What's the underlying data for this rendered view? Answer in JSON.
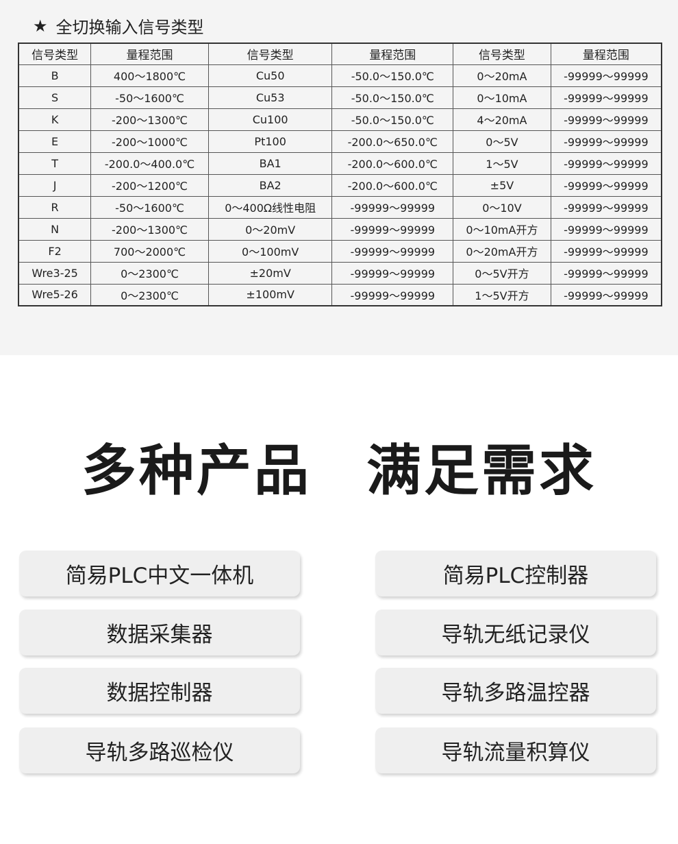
{
  "section_title": {
    "icon": "star-icon",
    "star": "★",
    "text": "全切换输入信号类型"
  },
  "table": {
    "headers": [
      "信号类型",
      "量程范围",
      "信号类型",
      "量程范围",
      "信号类型",
      "量程范围"
    ],
    "rows": [
      [
        "B",
        "400～1800℃",
        "Cu50",
        "-50.0～150.0℃",
        "0～20mA",
        "-99999～99999"
      ],
      [
        "S",
        "-50～1600℃",
        "Cu53",
        "-50.0～150.0℃",
        "0～10mA",
        "-99999～99999"
      ],
      [
        "K",
        "-200～1300℃",
        "Cu100",
        "-50.0～150.0℃",
        "4～20mA",
        "-99999～99999"
      ],
      [
        "E",
        "-200～1000℃",
        "Pt100",
        "-200.0～650.0℃",
        "0～5V",
        "-99999～99999"
      ],
      [
        "T",
        "-200.0～400.0℃",
        "BA1",
        "-200.0～600.0℃",
        "1～5V",
        "-99999～99999"
      ],
      [
        "J",
        "-200～1200℃",
        "BA2",
        "-200.0～600.0℃",
        "±5V",
        "-99999～99999"
      ],
      [
        "R",
        "-50～1600℃",
        "0～400Ω线性电阻",
        "-99999～99999",
        "0～10V",
        "-99999～99999"
      ],
      [
        "N",
        "-200～1300℃",
        "0～20mV",
        "-99999～99999",
        "0～10mA开方",
        "-99999～99999"
      ],
      [
        "F2",
        "700～2000℃",
        "0～100mV",
        "-99999～99999",
        "0～20mA开方",
        "-99999～99999"
      ],
      [
        "Wre3-25",
        "0～2300℃",
        "±20mV",
        "-99999～99999",
        "0～5V开方",
        "-99999～99999"
      ],
      [
        "Wre5-26",
        "0～2300℃",
        "±100mV",
        "-99999～99999",
        "1～5V开方",
        "-99999～99999"
      ]
    ]
  },
  "heading": {
    "part1": "多种产品",
    "part2": "满足需求"
  },
  "products": [
    "简易PLC中文一体机",
    "简易PLC控制器",
    "数据采集器",
    "导轨无纸记录仪",
    "数据控制器",
    "导轨多路温控器",
    "导轨多路巡检仪",
    "导轨流量积算仪"
  ]
}
